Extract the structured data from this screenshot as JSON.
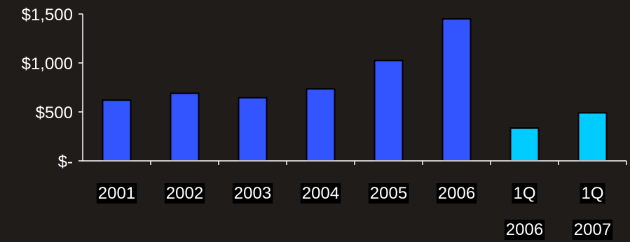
{
  "chart_data": {
    "type": "bar",
    "categories": [
      [
        "2001"
      ],
      [
        "2002"
      ],
      [
        "2003"
      ],
      [
        "2004"
      ],
      [
        "2005"
      ],
      [
        "2006"
      ],
      [
        "1Q",
        "2006"
      ],
      [
        "1Q",
        "2007"
      ]
    ],
    "values": [
      620,
      690,
      645,
      735,
      1025,
      1450,
      335,
      490
    ],
    "bar_colors": [
      "#3355ff",
      "#3355ff",
      "#3355ff",
      "#3355ff",
      "#3355ff",
      "#3355ff",
      "#00ccff",
      "#00ccff"
    ],
    "yticks": [
      {
        "value": 0,
        "label": "$-"
      },
      {
        "value": 500,
        "label": "$500"
      },
      {
        "value": 1000,
        "label": "$1,000"
      },
      {
        "value": 1500,
        "label": "$1,500"
      }
    ],
    "ylim": [
      0,
      1500
    ],
    "title": "",
    "xlabel": "",
    "ylabel": "",
    "grid": false,
    "legend": "none"
  },
  "colors": {
    "background": "#201c1a",
    "axis": "#ffffff",
    "text": "#ffffff",
    "label_box": "#000000",
    "bar_outline": "#000000"
  }
}
